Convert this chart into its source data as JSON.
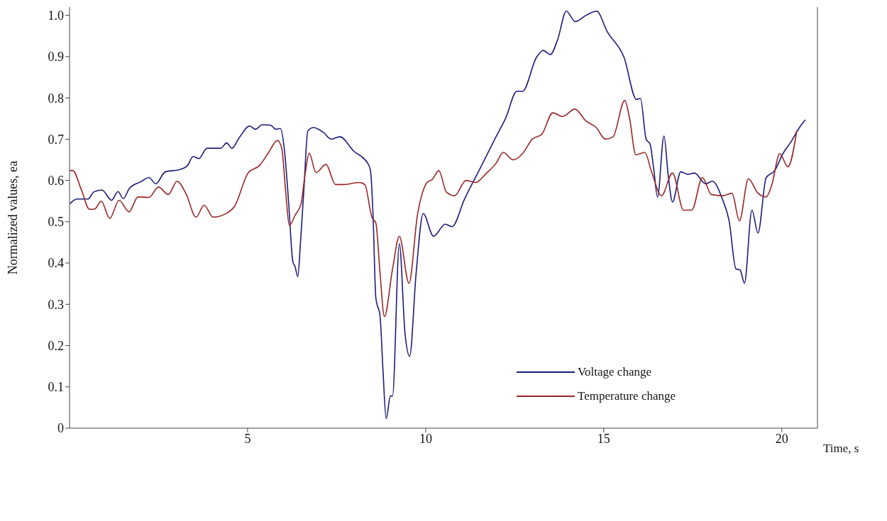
{
  "chart_data": {
    "type": "line",
    "xlabel": "Time, s",
    "ylabel": "Normalized values, ea",
    "xlim": [
      0,
      21
    ],
    "xticks": [
      5,
      10,
      15,
      20
    ],
    "ylim": [
      0,
      1.02
    ],
    "yticks": [
      0,
      0.1,
      0.2,
      0.3,
      0.4,
      0.5,
      0.6,
      0.7,
      0.8,
      0.9,
      {
        "value": 1,
        "label": "1.0"
      }
    ],
    "legend": "bottom right",
    "series": [
      {
        "name": "Voltage change",
        "color": "#1c1c7c",
        "x": [
          0,
          0.21,
          0.52,
          0.68,
          0.91,
          1.18,
          1.36,
          1.51,
          1.68,
          2.0,
          2.23,
          2.42,
          2.69,
          3.08,
          3.31,
          3.47,
          3.63,
          3.86,
          4.25,
          4.41,
          4.56,
          4.76,
          5.06,
          5.22,
          5.41,
          5.64,
          5.8,
          5.92,
          6.03,
          6.15,
          6.27,
          6.33,
          6.41,
          6.48,
          6.58,
          6.69,
          6.85,
          7.12,
          7.35,
          7.59,
          7.98,
          8.37,
          8.45,
          8.52,
          8.6,
          8.72,
          8.8,
          8.89,
          9.01,
          9.07,
          9.26,
          9.42,
          9.55,
          9.73,
          9.93,
          10.22,
          10.55,
          10.74,
          11.09,
          11.55,
          11.94,
          12.25,
          12.56,
          12.72,
          13.11,
          13.3,
          13.5,
          13.7,
          13.95,
          14.2,
          14.5,
          14.8,
          15.1,
          15.57,
          15.92,
          16.03,
          16.19,
          16.3,
          16.4,
          16.51,
          16.69,
          16.81,
          16.93,
          17.16,
          17.36,
          17.55,
          17.86,
          18.05,
          18.33,
          18.52,
          18.71,
          18.83,
          18.95,
          19.16,
          19.33,
          19.56,
          19.8,
          20.03,
          20.26,
          20.5,
          20.66
        ],
        "values": [
          0.543,
          0.555,
          0.555,
          0.572,
          0.577,
          0.552,
          0.573,
          0.556,
          0.581,
          0.597,
          0.607,
          0.592,
          0.621,
          0.626,
          0.636,
          0.658,
          0.653,
          0.678,
          0.678,
          0.691,
          0.678,
          0.703,
          0.732,
          0.724,
          0.735,
          0.734,
          0.724,
          0.726,
          0.677,
          0.549,
          0.403,
          0.392,
          0.367,
          0.444,
          0.578,
          0.72,
          0.728,
          0.717,
          0.7,
          0.706,
          0.671,
          0.642,
          0.624,
          0.52,
          0.316,
          0.27,
          0.142,
          0.023,
          0.078,
          0.078,
          0.447,
          0.229,
          0.174,
          0.374,
          0.52,
          0.465,
          0.494,
          0.488,
          0.555,
          0.633,
          0.7,
          0.752,
          0.816,
          0.816,
          0.898,
          0.915,
          0.905,
          0.94,
          1.01,
          0.985,
          1.0,
          1.01,
          0.96,
          0.898,
          0.796,
          0.799,
          0.7,
          0.688,
          0.63,
          0.56,
          0.708,
          0.612,
          0.548,
          0.621,
          0.615,
          0.618,
          0.592,
          0.598,
          0.555,
          0.502,
          0.386,
          0.383,
          0.351,
          0.528,
          0.473,
          0.607,
          0.624,
          0.665,
          0.694,
          0.729,
          0.747
        ]
      },
      {
        "name": "Temperature change",
        "color": "#9a2626",
        "x": [
          0,
          0.09,
          0.33,
          0.56,
          0.71,
          0.89,
          1.13,
          1.39,
          1.67,
          1.92,
          2.23,
          2.5,
          2.77,
          3.02,
          3.28,
          3.55,
          3.78,
          4.03,
          4.4,
          4.63,
          5.02,
          5.33,
          5.57,
          5.84,
          5.96,
          6.07,
          6.17,
          6.34,
          6.5,
          6.61,
          6.73,
          6.92,
          7.2,
          7.47,
          7.67,
          8.14,
          8.29,
          8.49,
          8.6,
          8.72,
          8.84,
          9.07,
          9.26,
          9.53,
          9.77,
          10.04,
          10.19,
          10.37,
          10.58,
          10.81,
          11.13,
          11.4,
          11.71,
          11.98,
          12.18,
          12.45,
          12.72,
          12.99,
          13.26,
          13.57,
          13.84,
          14.19,
          14.5,
          14.78,
          15.05,
          15.26,
          15.59,
          15.72,
          15.9,
          16.15,
          16.35,
          16.62,
          16.93,
          17.24,
          17.47,
          17.77,
          18.02,
          18.33,
          18.6,
          18.81,
          19.06,
          19.33,
          19.56,
          19.72,
          19.94,
          20.17,
          20.42
        ],
        "values": [
          0.624,
          0.624,
          0.578,
          0.53,
          0.531,
          0.55,
          0.508,
          0.552,
          0.524,
          0.56,
          0.559,
          0.584,
          0.566,
          0.598,
          0.566,
          0.511,
          0.54,
          0.511,
          0.52,
          0.537,
          0.619,
          0.636,
          0.665,
          0.697,
          0.677,
          0.572,
          0.491,
          0.517,
          0.543,
          0.613,
          0.666,
          0.619,
          0.639,
          0.59,
          0.59,
          0.595,
          0.59,
          0.511,
          0.497,
          0.374,
          0.27,
          0.386,
          0.465,
          0.351,
          0.517,
          0.595,
          0.603,
          0.624,
          0.572,
          0.563,
          0.6,
          0.595,
          0.618,
          0.642,
          0.668,
          0.65,
          0.665,
          0.7,
          0.712,
          0.764,
          0.755,
          0.773,
          0.744,
          0.729,
          0.7,
          0.706,
          0.794,
          0.753,
          0.662,
          0.668,
          0.619,
          0.563,
          0.618,
          0.528,
          0.528,
          0.607,
          0.566,
          0.563,
          0.569,
          0.502,
          0.604,
          0.569,
          0.56,
          0.59,
          0.665,
          0.633,
          0.72
        ]
      }
    ]
  }
}
